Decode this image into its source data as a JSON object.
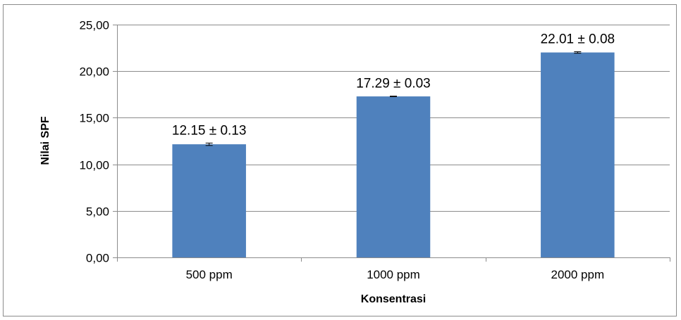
{
  "chart_data": {
    "type": "bar",
    "title": "",
    "xlabel": "Konsentrasi",
    "ylabel": "Nilai SPF",
    "categories": [
      "500 ppm",
      "1000 ppm",
      "2000 ppm"
    ],
    "series": [
      {
        "values": [
          12.15,
          17.29,
          22.01
        ],
        "errors": [
          0.13,
          0.03,
          0.08
        ],
        "color": "#4f81bd"
      }
    ],
    "data_labels": [
      "12.15 ± 0.13",
      "17.29 ± 0.03",
      "22.01 ± 0.08"
    ],
    "ylim": [
      0,
      25
    ],
    "yticks": [
      0,
      5,
      10,
      15,
      20,
      25
    ],
    "ytick_labels": [
      "0,00",
      "5,00",
      "10,00",
      "15,00",
      "20,00",
      "25,00"
    ],
    "grid": true,
    "legend": "none"
  }
}
